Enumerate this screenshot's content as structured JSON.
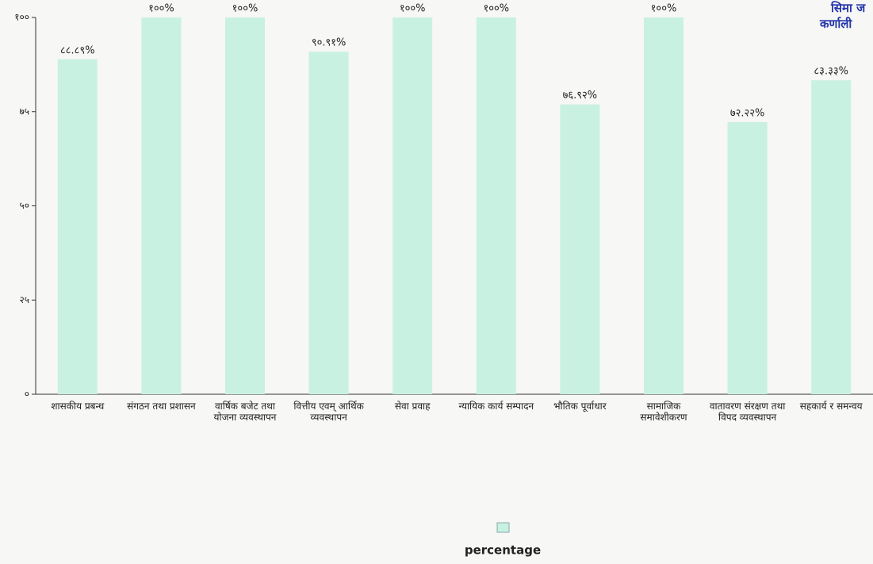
{
  "chart_data": {
    "type": "bar",
    "categories": [
      "शासकीय प्रबन्ध",
      "संगठन तथा प्रशासन",
      "वार्षिक बजेट तथा योजना व्यवस्थापन",
      "वित्तीय एवम् आर्थिक व्यवस्थापन",
      "सेवा प्रवाह",
      "न्यायिक कार्य सम्पादन",
      "भौतिक पूर्वाधार",
      "सामाजिक समावेशीकरण",
      "वातावरण संरक्षण तथा विपद व्यवस्थापन",
      "सहकार्य र समन्वय"
    ],
    "series": [
      {
        "name": "percentage",
        "color": "#c9f1e1",
        "values": [
          88.89,
          100,
          100,
          90.91,
          100,
          100,
          76.92,
          100,
          72.22,
          83.33
        ],
        "value_labels": [
          "८८.८९%",
          "१००%",
          "१००%",
          "९०.९१%",
          "१००%",
          "१००%",
          "७६.९२%",
          "१००%",
          "७२.२२%",
          "८३.३३%"
        ]
      }
    ],
    "ylim": [
      0,
      100
    ],
    "yticks": [
      {
        "value": 0,
        "label": "०"
      },
      {
        "value": 25,
        "label": "२५"
      },
      {
        "value": 50,
        "label": "५०"
      },
      {
        "value": 75,
        "label": "७५"
      },
      {
        "value": 100,
        "label": "१००"
      }
    ],
    "annotations": [
      "सिमा ज",
      "कर्णाली"
    ],
    "legend": "bottom"
  }
}
